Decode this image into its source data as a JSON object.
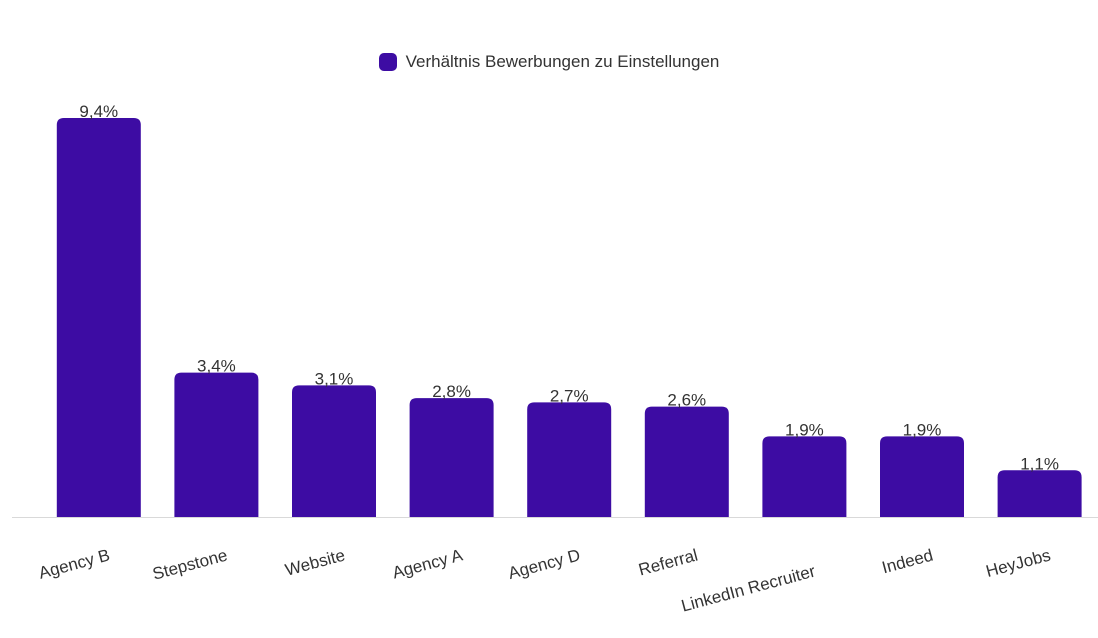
{
  "chart_data": {
    "type": "bar",
    "categories": [
      "Agency B",
      "Stepstone",
      "Website",
      "Agency A",
      "Agency D",
      "Referral",
      "LinkedIn Recruiter",
      "Indeed",
      "HeyJobs"
    ],
    "series": [
      {
        "name": "Verhältnis Bewerbungen zu Einstellungen",
        "values": [
          9.4,
          3.4,
          3.1,
          2.8,
          2.7,
          2.6,
          1.9,
          1.9,
          1.1
        ],
        "labels": [
          "9,4%",
          "3,4%",
          "3,1%",
          "2,8%",
          "2,7%",
          "2,6%",
          "1,9%",
          "1,9%",
          "1,1%"
        ]
      }
    ],
    "ylim": [
      0,
      9.4
    ],
    "grid": false,
    "legend_position": "top-center",
    "xlabel": "",
    "ylabel": "",
    "title": ""
  },
  "colors": {
    "bar": "#3d0ca3",
    "axis": "#d9d9d9",
    "text": "#333333"
  }
}
